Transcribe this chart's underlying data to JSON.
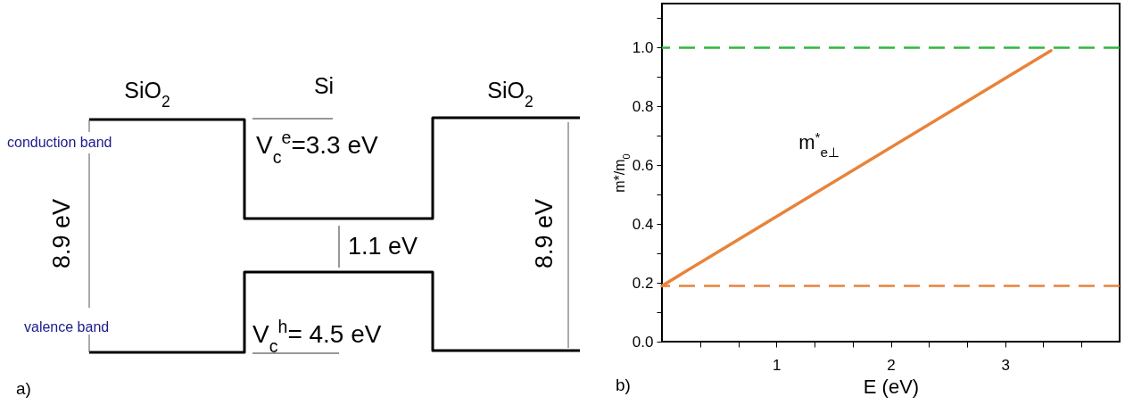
{
  "chart_data": [
    {
      "type": "other",
      "annotations": [
        "SiO$_{2}$",
        "Si",
        "SiO$_{2}$",
        "conduction band",
        "valence band",
        "8.9 eV",
        "V$_{c}$$^{e}$=3.3 eV",
        "1.1 eV",
        "V$_{c}$$^{h}$= 4.5 eV",
        "8.9 eV",
        "a)"
      ]
    },
    {
      "type": "line",
      "xlabel": "E (eV)",
      "ylabel": "m*/m$_{0}$",
      "series": [
        {
          "name": "m$^{*}$$_{e⊥}$",
          "color": "#e8833a",
          "x": [
            0,
            3.4
          ],
          "values": [
            0.19,
            0.99
          ]
        }
      ],
      "xlim": [
        0,
        4.0
      ],
      "ylim": [
        0,
        1.15
      ],
      "xticks": [
        {
          "value": 0.333,
          "label": null
        },
        {
          "value": 0.667,
          "label": null
        },
        1,
        {
          "value": 1.333,
          "label": null
        },
        {
          "value": 1.667,
          "label": null
        },
        2,
        {
          "value": 2.333,
          "label": null
        },
        {
          "value": 2.667,
          "label": null
        },
        3,
        {
          "value": 3.333,
          "label": null
        },
        {
          "value": 3.667,
          "label": null
        }
      ],
      "yticks": [
        {
          "value": 0,
          "label": "0.0"
        },
        {
          "value": 0.1,
          "label": null
        },
        {
          "value": 0.2,
          "label": "0.2"
        },
        {
          "value": 0.3,
          "label": null
        },
        {
          "value": 0.4,
          "label": "0.4"
        },
        {
          "value": 0.5,
          "label": null
        },
        {
          "value": 0.6,
          "label": "0.6"
        },
        {
          "value": 0.7,
          "label": null
        },
        {
          "value": 0.8,
          "label": "0.8"
        },
        {
          "value": 0.9,
          "label": null
        },
        {
          "value": 1.0,
          "label": "1.0"
        },
        {
          "value": 1.1,
          "label": null
        }
      ],
      "ref_lines": [
        {
          "axis": "y",
          "value": 1.0,
          "color": "#2db83d",
          "line_style": "dashed"
        },
        {
          "axis": "y",
          "value": 0.19,
          "color": "#e8833a",
          "line_style": "dashed"
        }
      ],
      "annotations": [
        "b)"
      ]
    }
  ]
}
